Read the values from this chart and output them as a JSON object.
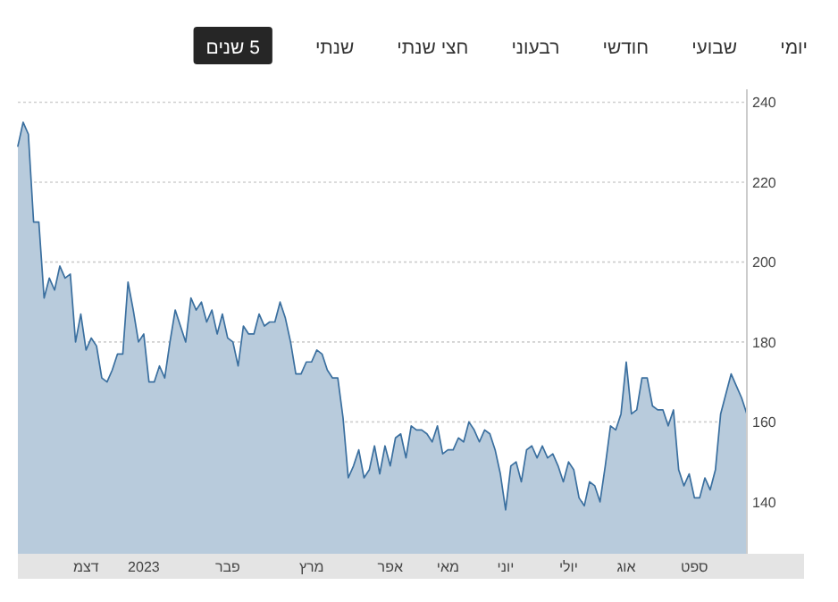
{
  "chart_data": {
    "type": "area",
    "annotations": [
      "יומי",
      "שבועי",
      "חודשי",
      "רבעוני",
      "חצי שנתי",
      "שנתי",
      "5 שנים"
    ],
    "categories": [
      null,
      null,
      null,
      null,
      null,
      null,
      null,
      null,
      null,
      null,
      null,
      null,
      null,
      "דצמ",
      null,
      null,
      null,
      null,
      null,
      null,
      null,
      null,
      null,
      null,
      "2023",
      null,
      null,
      null,
      null,
      null,
      null,
      null,
      null,
      null,
      null,
      null,
      null,
      null,
      null,
      null,
      "פבר",
      null,
      null,
      null,
      null,
      null,
      null,
      null,
      null,
      null,
      null,
      null,
      null,
      null,
      null,
      null,
      "מרץ",
      null,
      null,
      null,
      null,
      null,
      null,
      null,
      null,
      null,
      null,
      null,
      null,
      null,
      null,
      "אפר",
      null,
      null,
      null,
      null,
      null,
      null,
      null,
      null,
      null,
      null,
      "מאי",
      null,
      null,
      null,
      null,
      null,
      null,
      null,
      null,
      null,
      null,
      "יוני",
      null,
      null,
      null,
      null,
      null,
      null,
      null,
      null,
      null,
      null,
      null,
      "יולי",
      null,
      null,
      null,
      null,
      null,
      null,
      null,
      null,
      null,
      null,
      "אוג",
      null,
      null,
      null,
      null,
      null,
      null,
      null,
      null,
      null,
      null,
      null,
      null,
      "ספט",
      null,
      null,
      null,
      null,
      null,
      null,
      null,
      null,
      null,
      null
    ],
    "series": [
      {
        "color": "#3a6f9f",
        "values": [
          229,
          235,
          232,
          210,
          210,
          191,
          196,
          193,
          199,
          196,
          197,
          180,
          187,
          178,
          181,
          179,
          171,
          170,
          173,
          177,
          177,
          195,
          188,
          180,
          182,
          170,
          170,
          174,
          171,
          180,
          188,
          184,
          180,
          191,
          188,
          190,
          185,
          188,
          182,
          187,
          181,
          180,
          174,
          184,
          182,
          182,
          187,
          184,
          185,
          185,
          190,
          186,
          180,
          172,
          172,
          175,
          175,
          178,
          177,
          173,
          171,
          171,
          161,
          146,
          149,
          153,
          146,
          148,
          154,
          147,
          154,
          149,
          156,
          157,
          151,
          159,
          158,
          158,
          157,
          155,
          159,
          152,
          153,
          153,
          156,
          155,
          160,
          158,
          155,
          158,
          157,
          153,
          147,
          138,
          149,
          150,
          145,
          153,
          154,
          151,
          154,
          151,
          152,
          149,
          145,
          150,
          148,
          141,
          139,
          145,
          144,
          140,
          149,
          159,
          158,
          162,
          175,
          162,
          163,
          171,
          171,
          164,
          163,
          163,
          159,
          163,
          148,
          144,
          147,
          141,
          141,
          146,
          143,
          148,
          162,
          167,
          172,
          169,
          166,
          162
        ]
      }
    ],
    "ylim": [
      127,
      241
    ],
    "yticks": [
      140,
      160,
      180,
      200,
      220,
      240
    ],
    "grid": "y"
  }
}
